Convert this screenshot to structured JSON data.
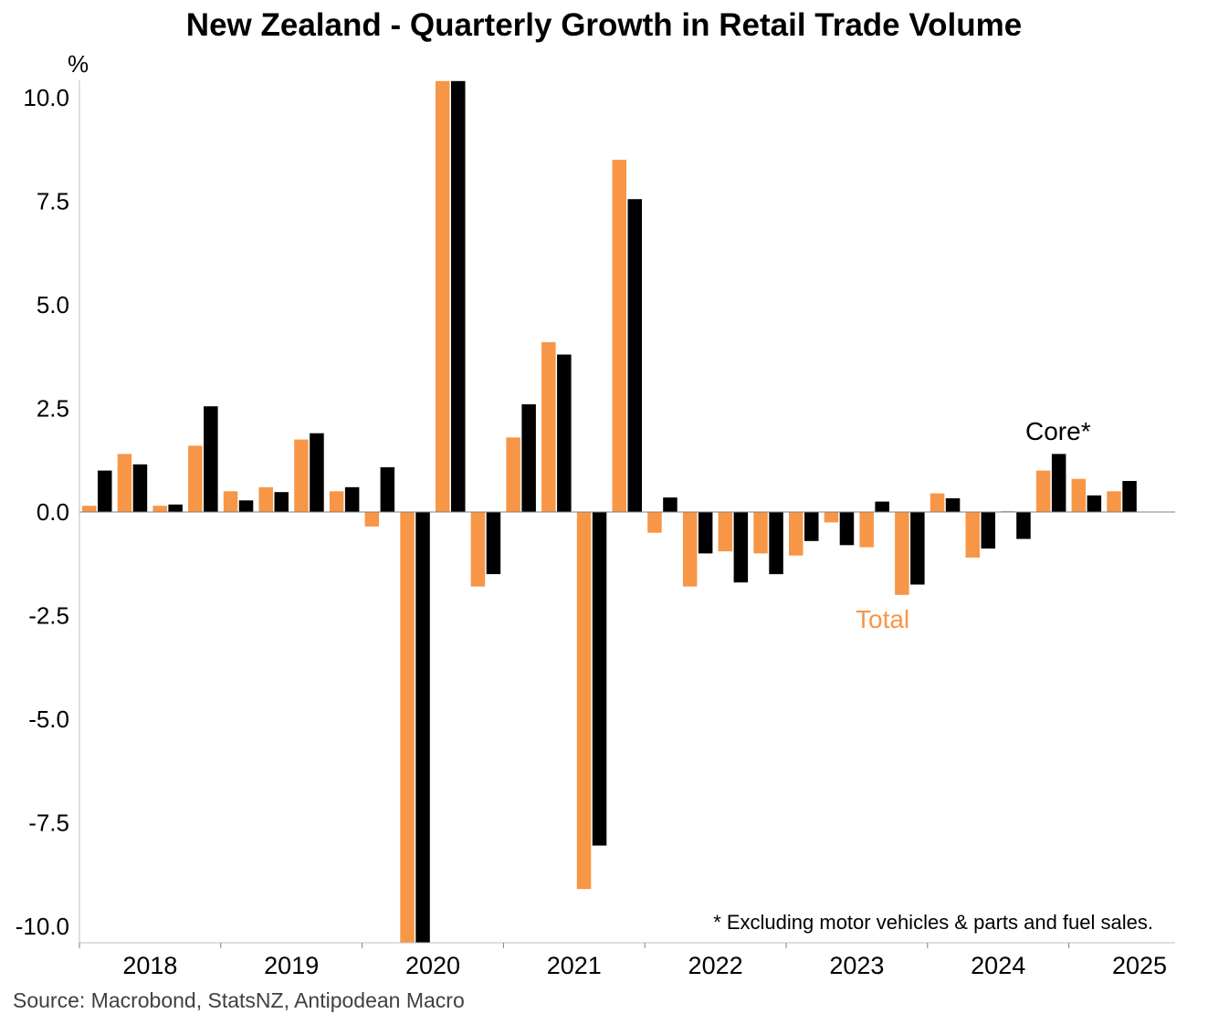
{
  "chart_data": {
    "type": "bar",
    "title": "New Zealand - Quarterly Growth in Retail Trade Volume",
    "ylabel": "%",
    "xlabel": "",
    "ylim": [
      -10.5,
      10.5
    ],
    "yticks": [
      10.0,
      7.5,
      5.0,
      2.5,
      0.0,
      -2.5,
      -5.0,
      -7.5,
      -10.0
    ],
    "ytick_labels": [
      "10.0",
      "7.5",
      "5.0",
      "2.5",
      "0.0",
      "-2.5",
      "-5.0",
      "-7.5",
      "-10.0"
    ],
    "years": [
      "2018",
      "2019",
      "2020",
      "2021",
      "2022",
      "2023",
      "2024",
      "2025"
    ],
    "categories": [
      "2018 Q1",
      "2018 Q2",
      "2018 Q3",
      "2018 Q4",
      "2019 Q1",
      "2019 Q2",
      "2019 Q3",
      "2019 Q4",
      "2020 Q1",
      "2020 Q2",
      "2020 Q3",
      "2020 Q4",
      "2021 Q1",
      "2021 Q2",
      "2021 Q3",
      "2021 Q4",
      "2022 Q1",
      "2022 Q2",
      "2022 Q3",
      "2022 Q4",
      "2023 Q1",
      "2023 Q2",
      "2023 Q3",
      "2023 Q4",
      "2024 Q1",
      "2024 Q2",
      "2024 Q3",
      "2024 Q4",
      "2025 Q1",
      "2025 Q2",
      "2025 Q3",
      "2025 Q4"
    ],
    "series": [
      {
        "name": "Total",
        "color": "#F79646",
        "values": [
          0.15,
          1.4,
          0.15,
          1.6,
          0.5,
          0.6,
          1.75,
          0.5,
          -0.35,
          -10.8,
          10.4,
          -1.8,
          1.8,
          4.1,
          -9.1,
          8.5,
          -0.5,
          -1.8,
          -0.95,
          -1.0,
          -1.05,
          -0.25,
          -0.85,
          -2.0,
          0.45,
          -1.1,
          0.02,
          1.0,
          0.8,
          0.5,
          null,
          null
        ]
      },
      {
        "name": "Core*",
        "color": "#000000",
        "values": [
          1.0,
          1.15,
          0.18,
          2.55,
          0.28,
          0.48,
          1.9,
          0.6,
          1.08,
          -10.8,
          10.4,
          -1.5,
          2.6,
          3.8,
          -8.05,
          7.55,
          0.35,
          -1.0,
          -1.7,
          -1.5,
          -0.7,
          -0.8,
          0.25,
          -1.75,
          0.33,
          -0.88,
          -0.65,
          1.4,
          0.4,
          0.75,
          null,
          null
        ]
      }
    ],
    "annotations": {
      "core_label": "Core*",
      "total_label": "Total",
      "footnote": "* Excluding motor vehicles & parts and fuel sales."
    },
    "source": "Source: Macrobond, StatsNZ, Antipodean Macro"
  }
}
